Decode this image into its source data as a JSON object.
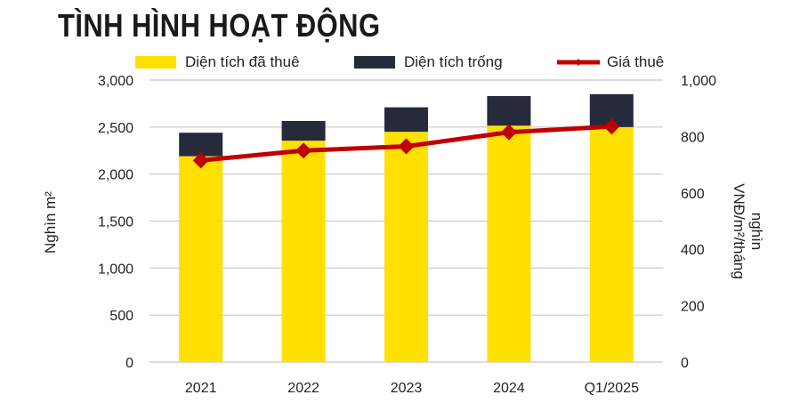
{
  "chart_data": {
    "type": "bar",
    "title": "TÌNH HÌNH HOẠT ĐỘNG",
    "categories": [
      "2021",
      "2022",
      "2023",
      "2024",
      "Q1/2025"
    ],
    "stacked": true,
    "series": [
      {
        "name": "Diện tích đã thuê",
        "type": "bar",
        "axis": "left",
        "color": "#FFE000",
        "values": [
          2190,
          2355,
          2450,
          2515,
          2500
        ]
      },
      {
        "name": "Diện tích trống",
        "type": "bar",
        "axis": "left",
        "color": "#262A3B",
        "values": [
          250,
          210,
          260,
          315,
          350
        ]
      },
      {
        "name": "Giá thuê",
        "type": "line",
        "marker": "diamond",
        "axis": "right",
        "color": "#C00000",
        "values": [
          715,
          750,
          765,
          815,
          835
        ]
      }
    ],
    "ylabel": "Nghìn m²",
    "ylabel_right_lines": [
      "nghìn",
      "VNĐ/m²/tháng"
    ],
    "ylim": [
      0,
      3000
    ],
    "yticks": [
      "0",
      "500",
      "1,000",
      "1,500",
      "2,000",
      "2,500",
      "3,000"
    ],
    "ylim_right": [
      0,
      1000
    ],
    "yticks_right": [
      "0",
      "200",
      "400",
      "600",
      "800",
      "1,000"
    ],
    "grid": true,
    "legend_placement": "top"
  }
}
